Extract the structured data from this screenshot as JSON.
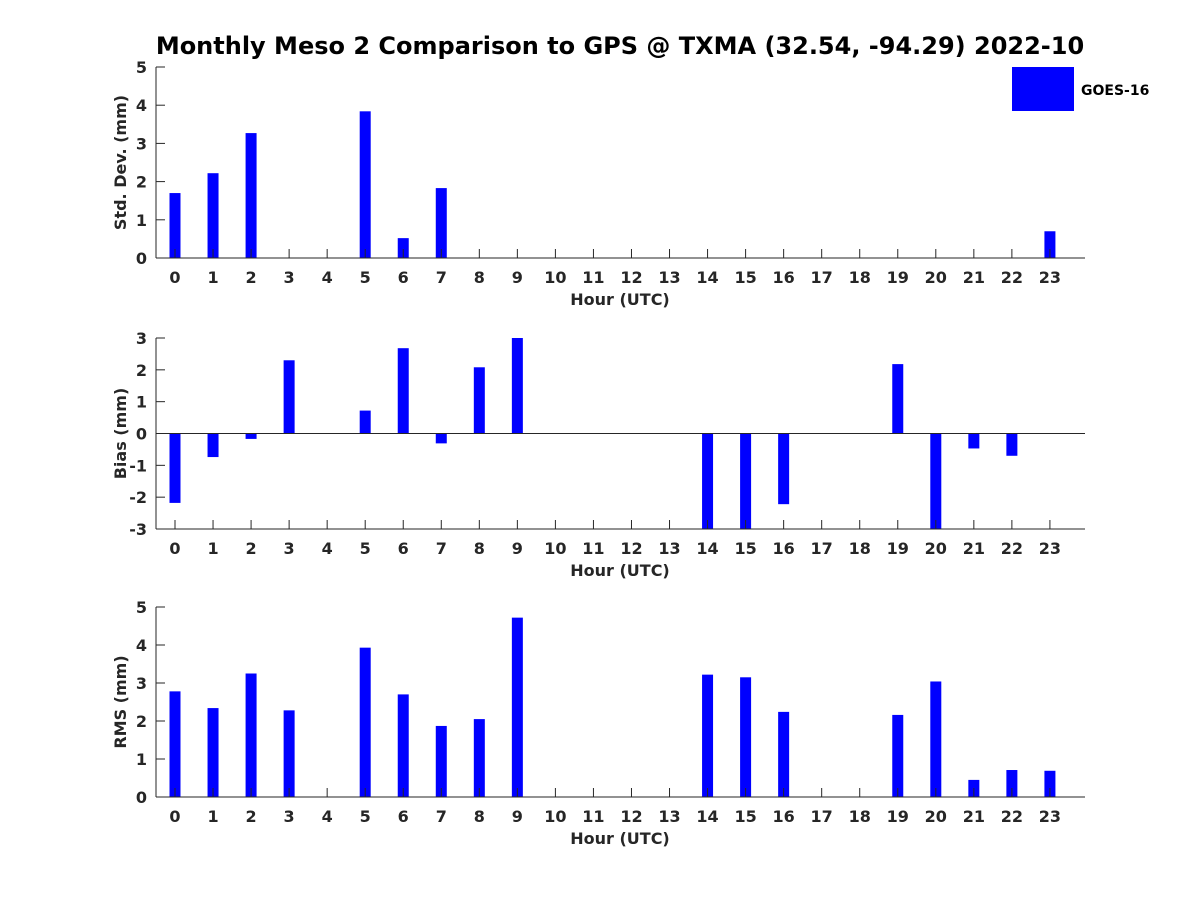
{
  "title": "Monthly Meso 2 Comparison to GPS @ TXMA (32.54, -94.29) 2022-10",
  "legend": {
    "label": "GOES-16",
    "color": "#0000ff",
    "placement": "top-right"
  },
  "chart_data": [
    {
      "type": "bar",
      "categories": [
        "0",
        "1",
        "2",
        "3",
        "4",
        "5",
        "6",
        "7",
        "8",
        "9",
        "10",
        "11",
        "12",
        "13",
        "14",
        "15",
        "16",
        "17",
        "18",
        "19",
        "20",
        "21",
        "22",
        "23"
      ],
      "series": [
        {
          "name": "GOES-16",
          "values": [
            1.7,
            2.22,
            3.27,
            0,
            0,
            3.84,
            0.52,
            1.83,
            0,
            0,
            0,
            0,
            0,
            0,
            0,
            0,
            0,
            0,
            0,
            0,
            0,
            0,
            0,
            0.7
          ]
        }
      ],
      "xlabel": "Hour (UTC)",
      "ylabel": "Std. Dev. (mm)",
      "ylim": [
        0,
        5
      ],
      "yticks": [
        "0",
        "1",
        "2",
        "3",
        "4",
        "5"
      ]
    },
    {
      "type": "bar",
      "categories": [
        "0",
        "1",
        "2",
        "3",
        "4",
        "5",
        "6",
        "7",
        "8",
        "9",
        "10",
        "11",
        "12",
        "13",
        "14",
        "15",
        "16",
        "17",
        "18",
        "19",
        "20",
        "21",
        "22",
        "23"
      ],
      "series": [
        {
          "name": "GOES-16",
          "values": [
            -2.18,
            -0.74,
            -0.17,
            2.3,
            0,
            0.72,
            2.68,
            -0.31,
            2.08,
            3.0,
            0,
            0,
            0,
            0,
            -3.0,
            -3.0,
            -2.22,
            0,
            0,
            2.18,
            -3.0,
            -0.47,
            -0.7,
            0
          ]
        }
      ],
      "xlabel": "Hour (UTC)",
      "ylabel": "Bias (mm)",
      "ylim": [
        -3,
        3
      ],
      "yticks": [
        "-3",
        "-2",
        "-1",
        "0",
        "1",
        "2",
        "3"
      ]
    },
    {
      "type": "bar",
      "categories": [
        "0",
        "1",
        "2",
        "3",
        "4",
        "5",
        "6",
        "7",
        "8",
        "9",
        "10",
        "11",
        "12",
        "13",
        "14",
        "15",
        "16",
        "17",
        "18",
        "19",
        "20",
        "21",
        "22",
        "23"
      ],
      "series": [
        {
          "name": "GOES-16",
          "values": [
            2.78,
            2.34,
            3.25,
            2.28,
            0,
            3.93,
            2.7,
            1.87,
            2.05,
            4.72,
            0,
            0,
            0,
            0,
            3.22,
            3.15,
            2.24,
            0,
            0,
            2.16,
            3.04,
            0.45,
            0.71,
            0.69
          ]
        }
      ],
      "xlabel": "Hour (UTC)",
      "ylabel": "RMS (mm)",
      "ylim": [
        0,
        5
      ],
      "yticks": [
        "0",
        "1",
        "2",
        "3",
        "4",
        "5"
      ]
    }
  ]
}
